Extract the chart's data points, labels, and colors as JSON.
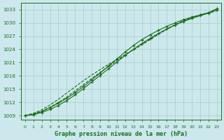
{
  "title": "Graphe pression niveau de la mer (hPa)",
  "background_color": "#cce8ec",
  "grid_color": "#aacccc",
  "line_color": "#1a6e1a",
  "x_hours": [
    0,
    1,
    2,
    3,
    4,
    5,
    6,
    7,
    8,
    9,
    10,
    11,
    12,
    13,
    14,
    15,
    16,
    17,
    18,
    19,
    20,
    21,
    22,
    23
  ],
  "series": [
    [
      1009.0,
      1009.3,
      1009.9,
      1010.8,
      1011.8,
      1012.9,
      1014.2,
      1015.6,
      1017.1,
      1018.6,
      1020.2,
      1021.8,
      1023.4,
      1024.9,
      1026.2,
      1027.3,
      1028.3,
      1029.2,
      1030.0,
      1030.7,
      1031.3,
      1031.8,
      1032.3,
      1033.2
    ],
    [
      1009.0,
      1009.5,
      1010.3,
      1011.4,
      1012.7,
      1014.1,
      1015.5,
      1016.9,
      1018.2,
      1019.4,
      1020.6,
      1021.7,
      1022.8,
      1023.9,
      1025.0,
      1026.2,
      1027.4,
      1028.5,
      1029.5,
      1030.4,
      1031.1,
      1031.7,
      1032.2,
      1032.7
    ],
    [
      1009.0,
      1009.2,
      1009.7,
      1010.4,
      1011.3,
      1012.4,
      1013.7,
      1015.1,
      1016.6,
      1018.1,
      1019.6,
      1021.1,
      1022.6,
      1024.0,
      1025.3,
      1026.5,
      1027.6,
      1028.6,
      1029.5,
      1030.3,
      1031.0,
      1031.6,
      1032.2,
      1033.0
    ],
    [
      1009.0,
      1009.4,
      1010.0,
      1010.9,
      1012.0,
      1013.2,
      1014.6,
      1016.0,
      1017.4,
      1018.8,
      1020.1,
      1021.4,
      1022.7,
      1024.0,
      1025.2,
      1026.4,
      1027.5,
      1028.6,
      1029.6,
      1030.5,
      1031.2,
      1031.8,
      1032.3,
      1033.0
    ]
  ],
  "line_styles": [
    "-",
    "--",
    "-",
    "--"
  ],
  "markers_on": [
    true,
    false,
    true,
    false
  ],
  "yticks": [
    1009,
    1012,
    1015,
    1018,
    1021,
    1024,
    1027,
    1030,
    1033
  ],
  "ylim": [
    1008.0,
    1034.5
  ],
  "xlim": [
    -0.5,
    23.5
  ]
}
